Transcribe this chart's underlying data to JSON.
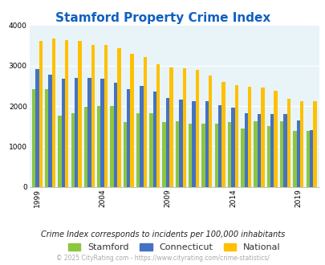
{
  "title": "Stamford Property Crime Index",
  "title_color": "#1060c0",
  "plot_bg_color": "#e8f4f8",
  "years": [
    1999,
    2000,
    2001,
    2002,
    2003,
    2004,
    2005,
    2006,
    2007,
    2008,
    2009,
    2010,
    2011,
    2012,
    2013,
    2014,
    2015,
    2016,
    2017,
    2018,
    2019,
    2020
  ],
  "stamford": [
    2420,
    2420,
    1760,
    1820,
    1980,
    2000,
    2000,
    1600,
    1820,
    1820,
    1600,
    1620,
    1560,
    1560,
    1560,
    1600,
    1440,
    1620,
    1510,
    1620,
    1390,
    1390
  ],
  "connecticut": [
    2920,
    2780,
    2680,
    2700,
    2700,
    2680,
    2570,
    2420,
    2490,
    2360,
    2190,
    2160,
    2110,
    2110,
    2010,
    1960,
    1820,
    1810,
    1810,
    1800,
    1640,
    1400
  ],
  "national": [
    3610,
    3660,
    3630,
    3610,
    3520,
    3510,
    3440,
    3300,
    3220,
    3040,
    2960,
    2930,
    2900,
    2760,
    2600,
    2510,
    2480,
    2460,
    2370,
    2180,
    2110,
    2110
  ],
  "stamford_color": "#8DC63F",
  "connecticut_color": "#4472C4",
  "national_color": "#FFC000",
  "ylim": [
    0,
    4000
  ],
  "yticks": [
    0,
    1000,
    2000,
    3000,
    4000
  ],
  "xlabel_ticks": [
    1999,
    2004,
    2009,
    2014,
    2019
  ],
  "subtitle": "Crime Index corresponds to incidents per 100,000 inhabitants",
  "footer": "© 2025 CityRating.com - https://www.cityrating.com/crime-statistics/",
  "subtitle_color": "#222222",
  "footer_color": "#aaaaaa",
  "legend_labels": [
    "Stamford",
    "Connecticut",
    "National"
  ]
}
